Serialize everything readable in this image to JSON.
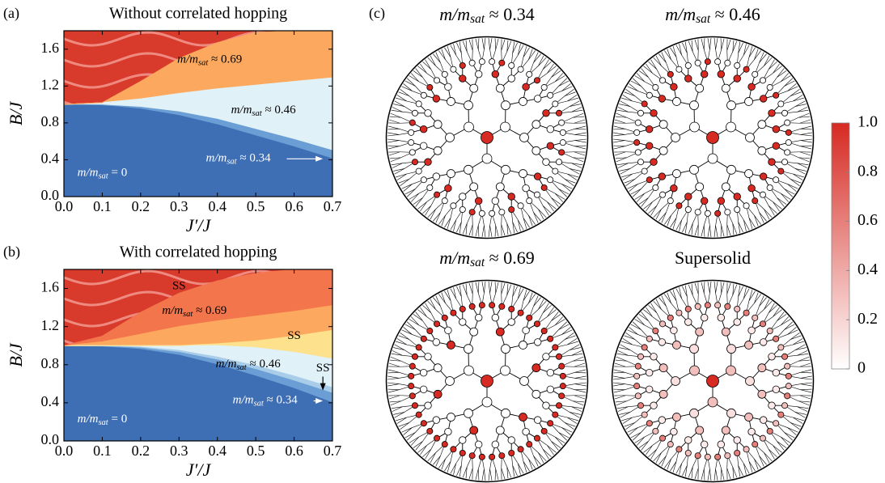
{
  "chart_data": [
    {
      "type": "phase",
      "panel": "(a)",
      "title": "Without correlated hopping",
      "x_label": "J′/J",
      "y_label": "B/J",
      "x": [
        0,
        0.1,
        0.2,
        0.3,
        0.4,
        0.5,
        0.6,
        0.7
      ],
      "series": [
        {
          "color": "#3e6eb4",
          "values": [
            1.0,
            0.99,
            0.95,
            0.88,
            0.78,
            0.66,
            0.54,
            0.41
          ]
        },
        {
          "color": "#6a9ed4",
          "values": [
            1.0,
            0.995,
            0.97,
            0.92,
            0.84,
            0.73,
            0.62,
            0.5
          ]
        },
        {
          "color": "#e0f1f8",
          "values": [
            1.0,
            1.02,
            1.06,
            1.12,
            1.17,
            1.21,
            1.25,
            1.29
          ]
        },
        {
          "color": "#fca95f",
          "values": [
            1.0,
            1.02,
            1.25,
            1.5,
            1.67,
            1.78,
            1.8,
            1.8
          ]
        }
      ],
      "top_color": "#d83a2c",
      "annotations": [
        {
          "base": "m/m",
          "sub": "sat",
          "rest": " ≈ 0.69"
        },
        {
          "base": "m/m",
          "sub": "sat",
          "rest": " ≈ 0.46"
        },
        {
          "base": "m/m",
          "sub": "sat",
          "rest": " ≈ 0.34"
        },
        {
          "base": "m/m",
          "sub": "sat",
          "rest": " = 0"
        }
      ],
      "xlim": [
        0,
        0.7
      ],
      "ylim": [
        0,
        1.8
      ],
      "xticks": [
        {
          "value": 0,
          "label": "0.0"
        },
        0.1,
        0.2,
        0.3,
        0.4,
        0.5,
        0.6,
        0.7
      ],
      "yticks": [
        {
          "value": 0,
          "label": "0.0"
        },
        0.4,
        0.8,
        {
          "value": 1.2,
          "label": "1.2"
        },
        1.6
      ]
    },
    {
      "type": "phase",
      "panel": "(b)",
      "title": "With correlated hopping",
      "x_label": "J′/J",
      "y_label": "B/J",
      "x": [
        0,
        0.1,
        0.2,
        0.3,
        0.4,
        0.5,
        0.6,
        0.7
      ],
      "series": [
        {
          "color": "#3e6eb4",
          "values": [
            1.0,
            0.99,
            0.96,
            0.9,
            0.8,
            0.68,
            0.55,
            0.4
          ]
        },
        {
          "color": "#6a9ed4",
          "values": [
            1.0,
            0.995,
            0.975,
            0.93,
            0.85,
            0.75,
            0.63,
            0.5
          ]
        },
        {
          "color": "#a9cde8",
          "values": [
            1.0,
            1.0,
            0.985,
            0.95,
            0.88,
            0.79,
            0.68,
            0.56
          ]
        },
        {
          "color": "#e0f1f8",
          "values": [
            1.0,
            1.0,
            1.0,
            1.0,
            1.0,
            0.98,
            0.93,
            0.86
          ]
        },
        {
          "color": "#fde18d",
          "values": [
            1.0,
            1.0,
            1.0,
            1.0,
            1.02,
            1.05,
            1.1,
            1.16
          ]
        },
        {
          "color": "#fca95f",
          "values": [
            1.0,
            1.04,
            1.12,
            1.2,
            1.26,
            1.31,
            1.36,
            1.42
          ]
        },
        {
          "color": "#f2754c",
          "values": [
            1.0,
            1.1,
            1.35,
            1.55,
            1.68,
            1.76,
            1.8,
            1.8
          ]
        }
      ],
      "top_color": "#d83a2c",
      "annotations": [
        {
          "base": "m/m",
          "sub": "sat",
          "rest": " ≈ 0.69"
        },
        {
          "base": "m/m",
          "sub": "sat",
          "rest": " ≈ 0.46"
        },
        {
          "base": "m/m",
          "sub": "sat",
          "rest": " ≈ 0.34"
        },
        {
          "base": "m/m",
          "sub": "sat",
          "rest": " = 0"
        },
        {
          "text": "SS"
        },
        {
          "text": "SS"
        },
        {
          "text": "SS"
        }
      ],
      "xlim": [
        0,
        0.7
      ],
      "ylim": [
        0,
        1.8
      ],
      "xticks": [
        {
          "value": 0,
          "label": "0.0"
        },
        0.1,
        0.2,
        0.3,
        0.4,
        0.5,
        0.6,
        0.7
      ],
      "yticks": [
        {
          "value": 0,
          "label": "0.0"
        },
        0.4,
        0.8,
        {
          "value": 1.2,
          "label": "1.2"
        },
        1.6
      ]
    },
    {
      "type": "lattice",
      "panel": "(c)",
      "panels": [
        {
          "title": {
            "base": "m/m",
            "sub": "sat",
            "rest": " ≈ 0.34"
          },
          "shells": [
            [
              1
            ],
            [
              0
            ],
            [
              0
            ],
            [
              0,
              0
            ],
            [
              1,
              0
            ],
            [
              0,
              1,
              0,
              0
            ]
          ]
        },
        {
          "title": {
            "base": "m/m",
            "sub": "sat",
            "rest": " ≈ 0.46"
          },
          "shells": [
            [
              1
            ],
            [
              0
            ],
            [
              0
            ],
            [
              0,
              0
            ],
            [
              1
            ],
            [
              0,
              0,
              0,
              1
            ]
          ]
        },
        {
          "title": {
            "base": "m/m",
            "sub": "sat",
            "rest": " ≈ 0.69"
          },
          "shells": [
            [
              1
            ],
            [
              0
            ],
            [
              0
            ],
            [
              1,
              0
            ],
            [
              0
            ],
            [
              1
            ]
          ]
        },
        {
          "title": {
            "text": "Supersolid"
          },
          "shells": [
            [
              1
            ],
            [
              0.3
            ],
            [
              0.15
            ],
            [
              0.3
            ],
            [
              0.1
            ],
            [
              0.3,
              0.6
            ]
          ]
        }
      ],
      "colorbar": {
        "lim": [
          0,
          1
        ],
        "colors": [
          "#ffffff",
          "#d62a22"
        ],
        "ticks": [
          0,
          0.2,
          0.4,
          0.6,
          0.8,
          {
            "value": 1,
            "label": "1.0"
          }
        ]
      }
    }
  ]
}
